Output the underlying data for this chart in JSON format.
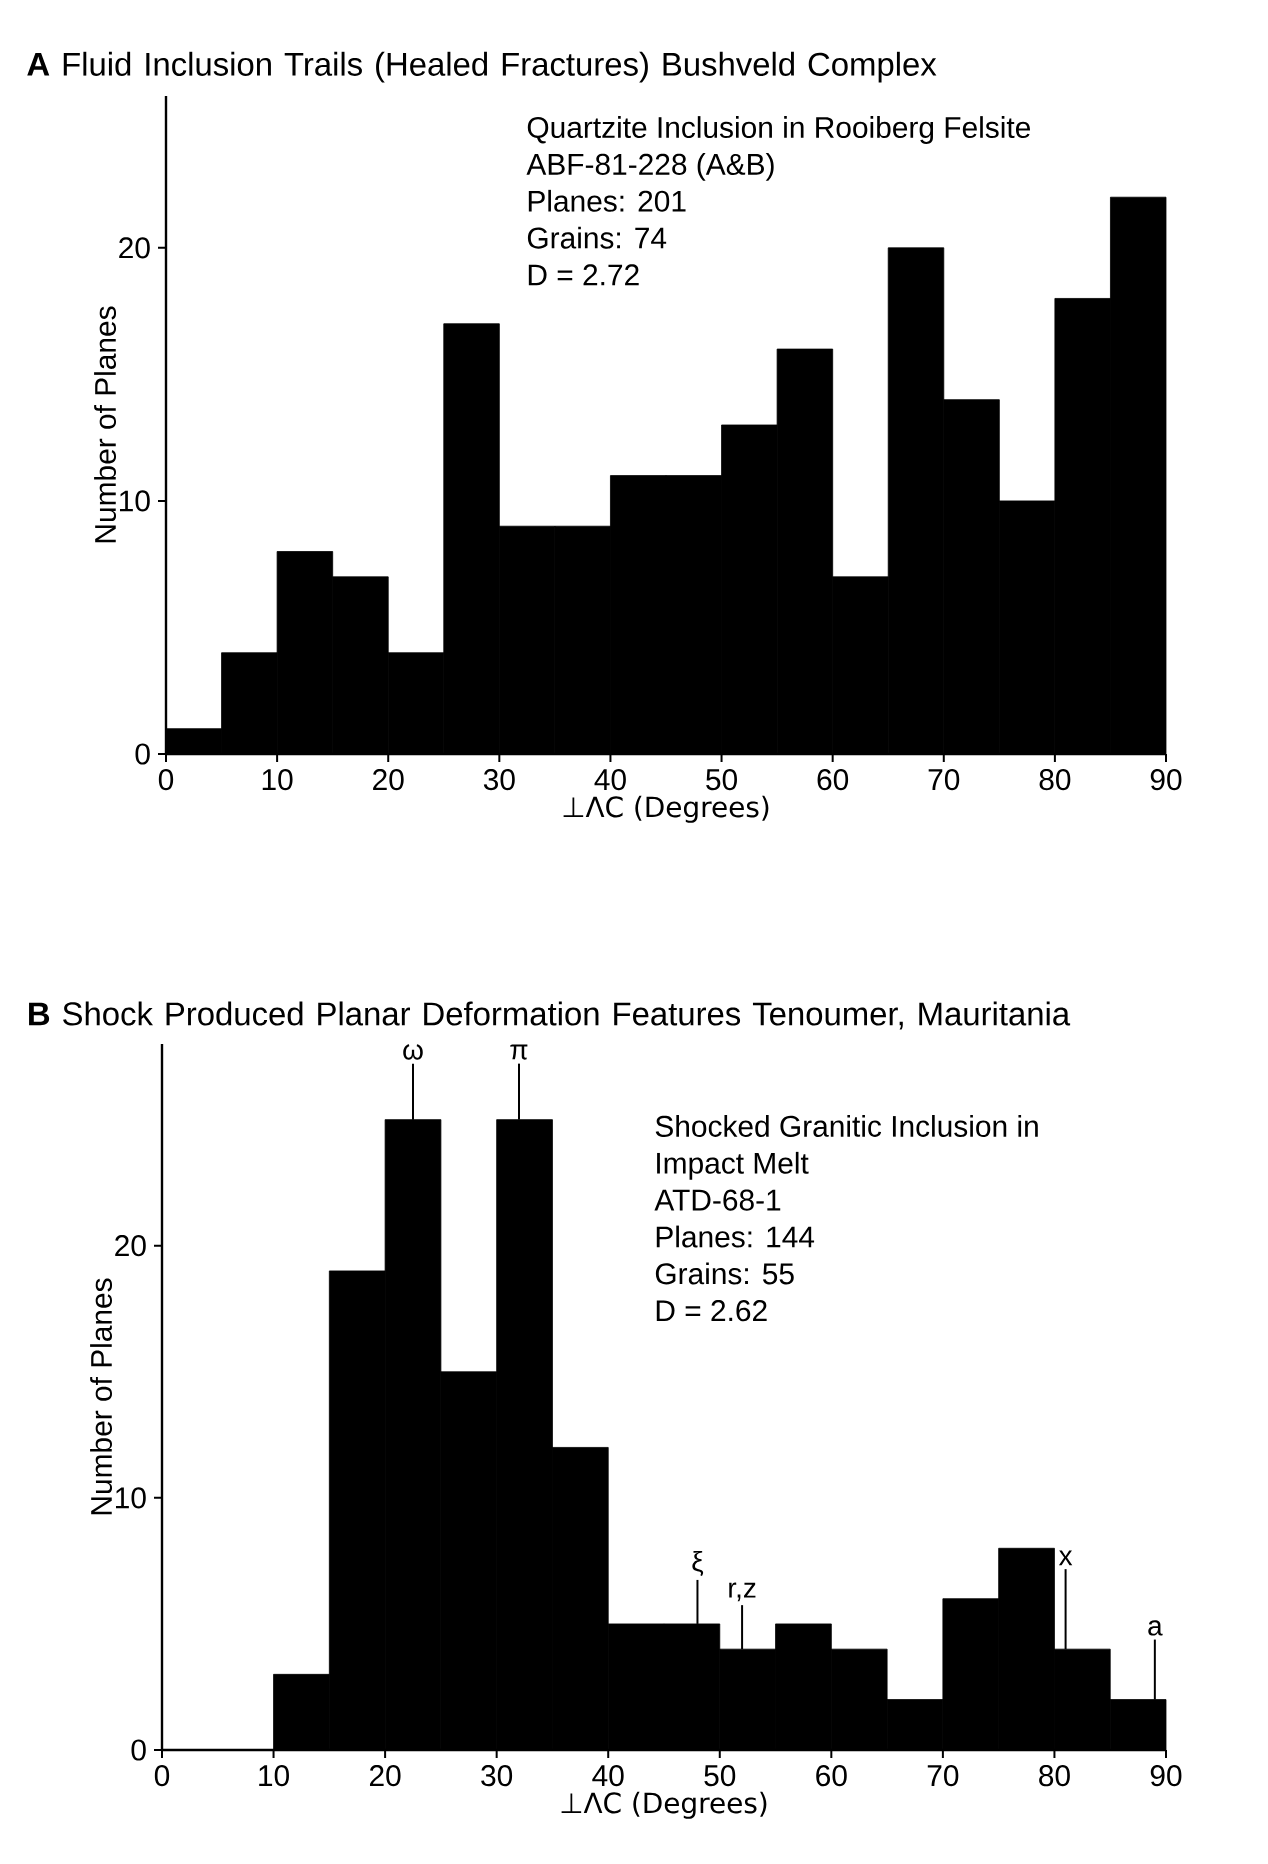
{
  "chart_data": [
    {
      "type": "histogram",
      "title": "**A** Fluid Inclusion Trails (Healed Fractures) Bushveld Complex",
      "xlabel": "⊥ΛC (Degrees)",
      "ylabel": "Number of Planes",
      "bins": [
        0,
        5,
        10,
        15,
        20,
        25,
        30,
        35,
        40,
        45,
        50,
        55,
        60,
        65,
        70,
        75,
        80,
        85,
        90
      ],
      "values": [
        1,
        4,
        8,
        7,
        4,
        17,
        9,
        9,
        11,
        11,
        13,
        16,
        7,
        20,
        14,
        10,
        18,
        22
      ],
      "color": "#000000",
      "xlim": [
        0,
        90
      ],
      "ylim": [
        0,
        26
      ],
      "xticks": [
        0,
        10,
        20,
        30,
        40,
        50,
        60,
        70,
        80,
        90
      ],
      "yticks": [
        0,
        10,
        20
      ],
      "grid": false,
      "annotations": [
        "Quartzite Inclusion in Rooiberg Felsite",
        "ABF-81-228 (A&B)",
        "Planes:  201",
        "Grains:    74",
        "D = 2.72"
      ]
    },
    {
      "type": "histogram",
      "title": "**B** Shock Produced Planar Deformation Features Tenoumer, Mauritania",
      "xlabel": "⊥ΛC (Degrees)",
      "ylabel": "Number of Planes",
      "bins": [
        0,
        5,
        10,
        15,
        20,
        25,
        30,
        35,
        40,
        45,
        50,
        55,
        60,
        65,
        70,
        75,
        80,
        85,
        90
      ],
      "values": [
        0,
        0,
        3,
        19,
        25,
        15,
        25,
        12,
        5,
        5,
        4,
        5,
        4,
        2,
        6,
        8,
        4,
        2
      ],
      "color": "#000000",
      "xlim": [
        0,
        90
      ],
      "ylim": [
        0,
        28
      ],
      "xticks": [
        0,
        10,
        20,
        30,
        40,
        50,
        60,
        70,
        80,
        90
      ],
      "yticks": [
        0,
        10,
        20
      ],
      "grid": false,
      "annotations": [
        "Shocked Granitic Inclusion in",
        "Impact Melt",
        "ATD-68-1",
        "Planes:  144",
        "Grains:    55",
        "D = 2.62",
        {
          "text": "ω",
          "x": 22.5,
          "y": 25
        },
        {
          "text": "π",
          "x": 32,
          "y": 25
        },
        {
          "text": "ξ",
          "x": 48,
          "y": 5
        },
        {
          "text": "r,z",
          "x": 52,
          "y": 4
        },
        {
          "text": "x",
          "x": 81,
          "y": 4
        },
        {
          "text": "a",
          "x": 89,
          "y": 2
        }
      ]
    }
  ]
}
